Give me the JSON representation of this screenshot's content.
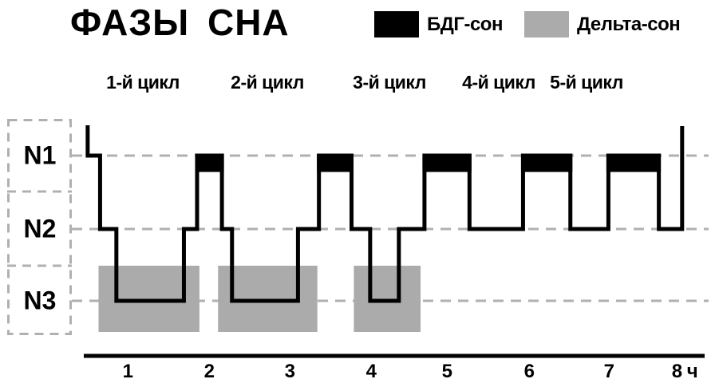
{
  "chart_data": {
    "type": "line",
    "subtype": "step-hypnogram",
    "title": "ФАЗЫ СНА",
    "x_axis": {
      "tick_labels": [
        "1",
        "2",
        "3",
        "4",
        "5",
        "6",
        "7",
        "8 ч"
      ],
      "unit": "ч",
      "range_hours": [
        0,
        8
      ],
      "grid": false
    },
    "y_axis": {
      "stage_labels": [
        "N1",
        "N2",
        "N3"
      ],
      "style": "dashed-boxes-with-horizontal-dashed-stage-lines"
    },
    "cycle_labels": [
      "1-й цикл",
      "2-й цикл",
      "3-й цикл",
      "4-й цикл",
      "5-й цикл"
    ],
    "legend": [
      {
        "label": "БДГ-сон",
        "color": "#000000"
      },
      {
        "label": "Дельта-сон",
        "color": "#ABABAB"
      }
    ],
    "sleep_onset_hour": 0.05,
    "wake_up_hour": 7.71,
    "segments": [
      {
        "stage": "N1",
        "t0": 0.05,
        "t1": 0.21
      },
      {
        "stage": "N2",
        "t0": 0.21,
        "t1": 0.42
      },
      {
        "stage": "N3",
        "t0": 0.42,
        "t1": 1.29
      },
      {
        "stage": "N2",
        "t0": 1.29,
        "t1": 1.46
      },
      {
        "stage": "REM",
        "t0": 1.46,
        "t1": 1.78
      },
      {
        "stage": "N2",
        "t0": 1.78,
        "t1": 1.91
      },
      {
        "stage": "N3",
        "t0": 1.91,
        "t1": 2.76
      },
      {
        "stage": "N2",
        "t0": 2.76,
        "t1": 3.03
      },
      {
        "stage": "REM",
        "t0": 3.03,
        "t1": 3.45
      },
      {
        "stage": "N2",
        "t0": 3.45,
        "t1": 3.69
      },
      {
        "stage": "N3",
        "t0": 3.69,
        "t1": 4.06
      },
      {
        "stage": "N2",
        "t0": 4.06,
        "t1": 4.39
      },
      {
        "stage": "REM",
        "t0": 4.39,
        "t1": 4.97
      },
      {
        "stage": "N2",
        "t0": 4.97,
        "t1": 5.66
      },
      {
        "stage": "REM",
        "t0": 5.66,
        "t1": 6.27
      },
      {
        "stage": "N2",
        "t0": 6.27,
        "t1": 6.76
      },
      {
        "stage": "REM",
        "t0": 6.76,
        "t1": 7.41
      },
      {
        "stage": "N2",
        "t0": 7.41,
        "t1": 7.71
      }
    ],
    "rem_intervals_hours": [
      [
        1.46,
        1.78
      ],
      [
        3.03,
        3.45
      ],
      [
        4.39,
        4.97
      ],
      [
        5.66,
        6.27
      ],
      [
        6.76,
        7.41
      ]
    ],
    "delta_intervals_hours": [
      [
        0.19,
        1.49
      ],
      [
        1.73,
        3.01
      ],
      [
        3.48,
        4.34
      ]
    ],
    "colors": {
      "line": "#000000",
      "rem_block": "#000000",
      "delta_block": "#ABABAB",
      "dashes": "#B0B0B0"
    }
  }
}
